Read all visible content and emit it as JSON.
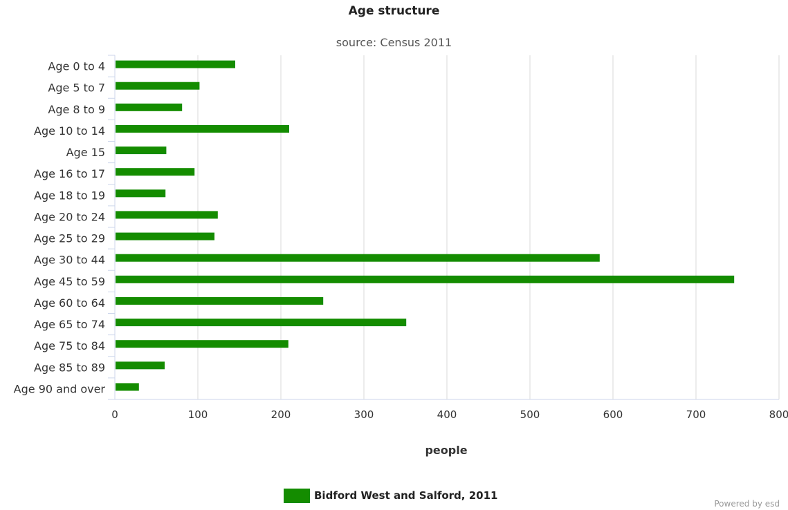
{
  "chart_data": {
    "type": "bar",
    "orientation": "horizontal",
    "title": "Age structure",
    "subtitle": "source: Census 2011",
    "xlabel": "people",
    "ylabel": "",
    "categories": [
      "Age 0 to 4",
      "Age 5 to 7",
      "Age 8 to 9",
      "Age 10 to 14",
      "Age 15",
      "Age 16 to 17",
      "Age 18 to 19",
      "Age 20 to 24",
      "Age 25 to 29",
      "Age 30 to 44",
      "Age 45 to 59",
      "Age 60 to 64",
      "Age 65 to 74",
      "Age 75 to 84",
      "Age 85 to 89",
      "Age 90 and over"
    ],
    "series": [
      {
        "name": "Bidford West and Salford, 2011",
        "color": "#148c00",
        "values": [
          145,
          102,
          81,
          210,
          62,
          96,
          61,
          124,
          120,
          584,
          746,
          251,
          351,
          209,
          60,
          29
        ]
      }
    ],
    "xlim": [
      0,
      800
    ],
    "xticks": [
      0,
      100,
      200,
      300,
      400,
      500,
      600,
      700,
      800
    ],
    "grid": true,
    "legend_position": "bottom-center"
  },
  "credit": "Powered by esd"
}
